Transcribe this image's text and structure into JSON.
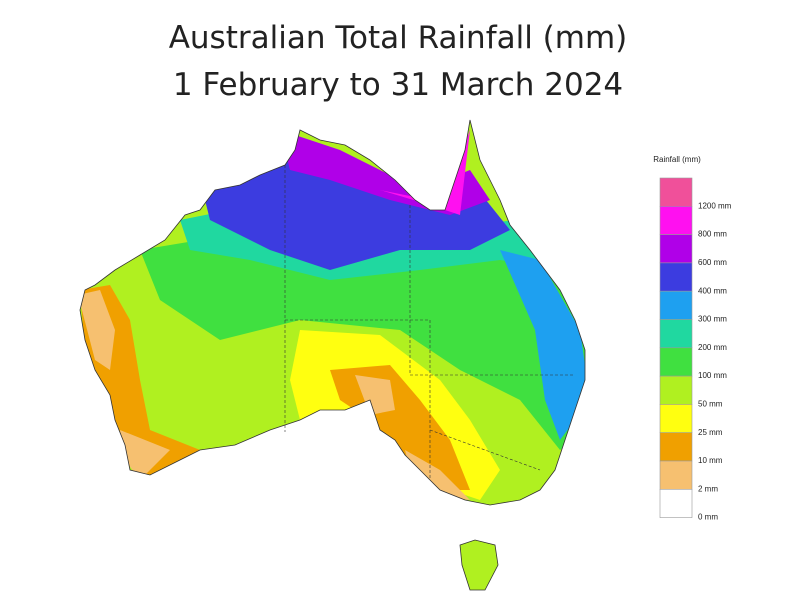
{
  "header": {
    "title_line1": "Australian Total Rainfall (mm)",
    "title_line2": "1 February to 31 March 2024"
  },
  "legend": {
    "title": "Rainfall (mm)",
    "colors": [
      "#f0509a",
      "#ff10f0",
      "#b000e8",
      "#3c3ce0",
      "#1ea0f0",
      "#20d8a0",
      "#40e040",
      "#b0f020",
      "#ffff10",
      "#f0a000",
      "#f6c070",
      "#ffffff"
    ],
    "labels": [
      "1200 mm",
      "800 mm",
      "600 mm",
      "400 mm",
      "300 mm",
      "200 mm",
      "100 mm",
      "50 mm",
      "25 mm",
      "10 mm",
      "2 mm",
      "0 mm"
    ]
  }
}
